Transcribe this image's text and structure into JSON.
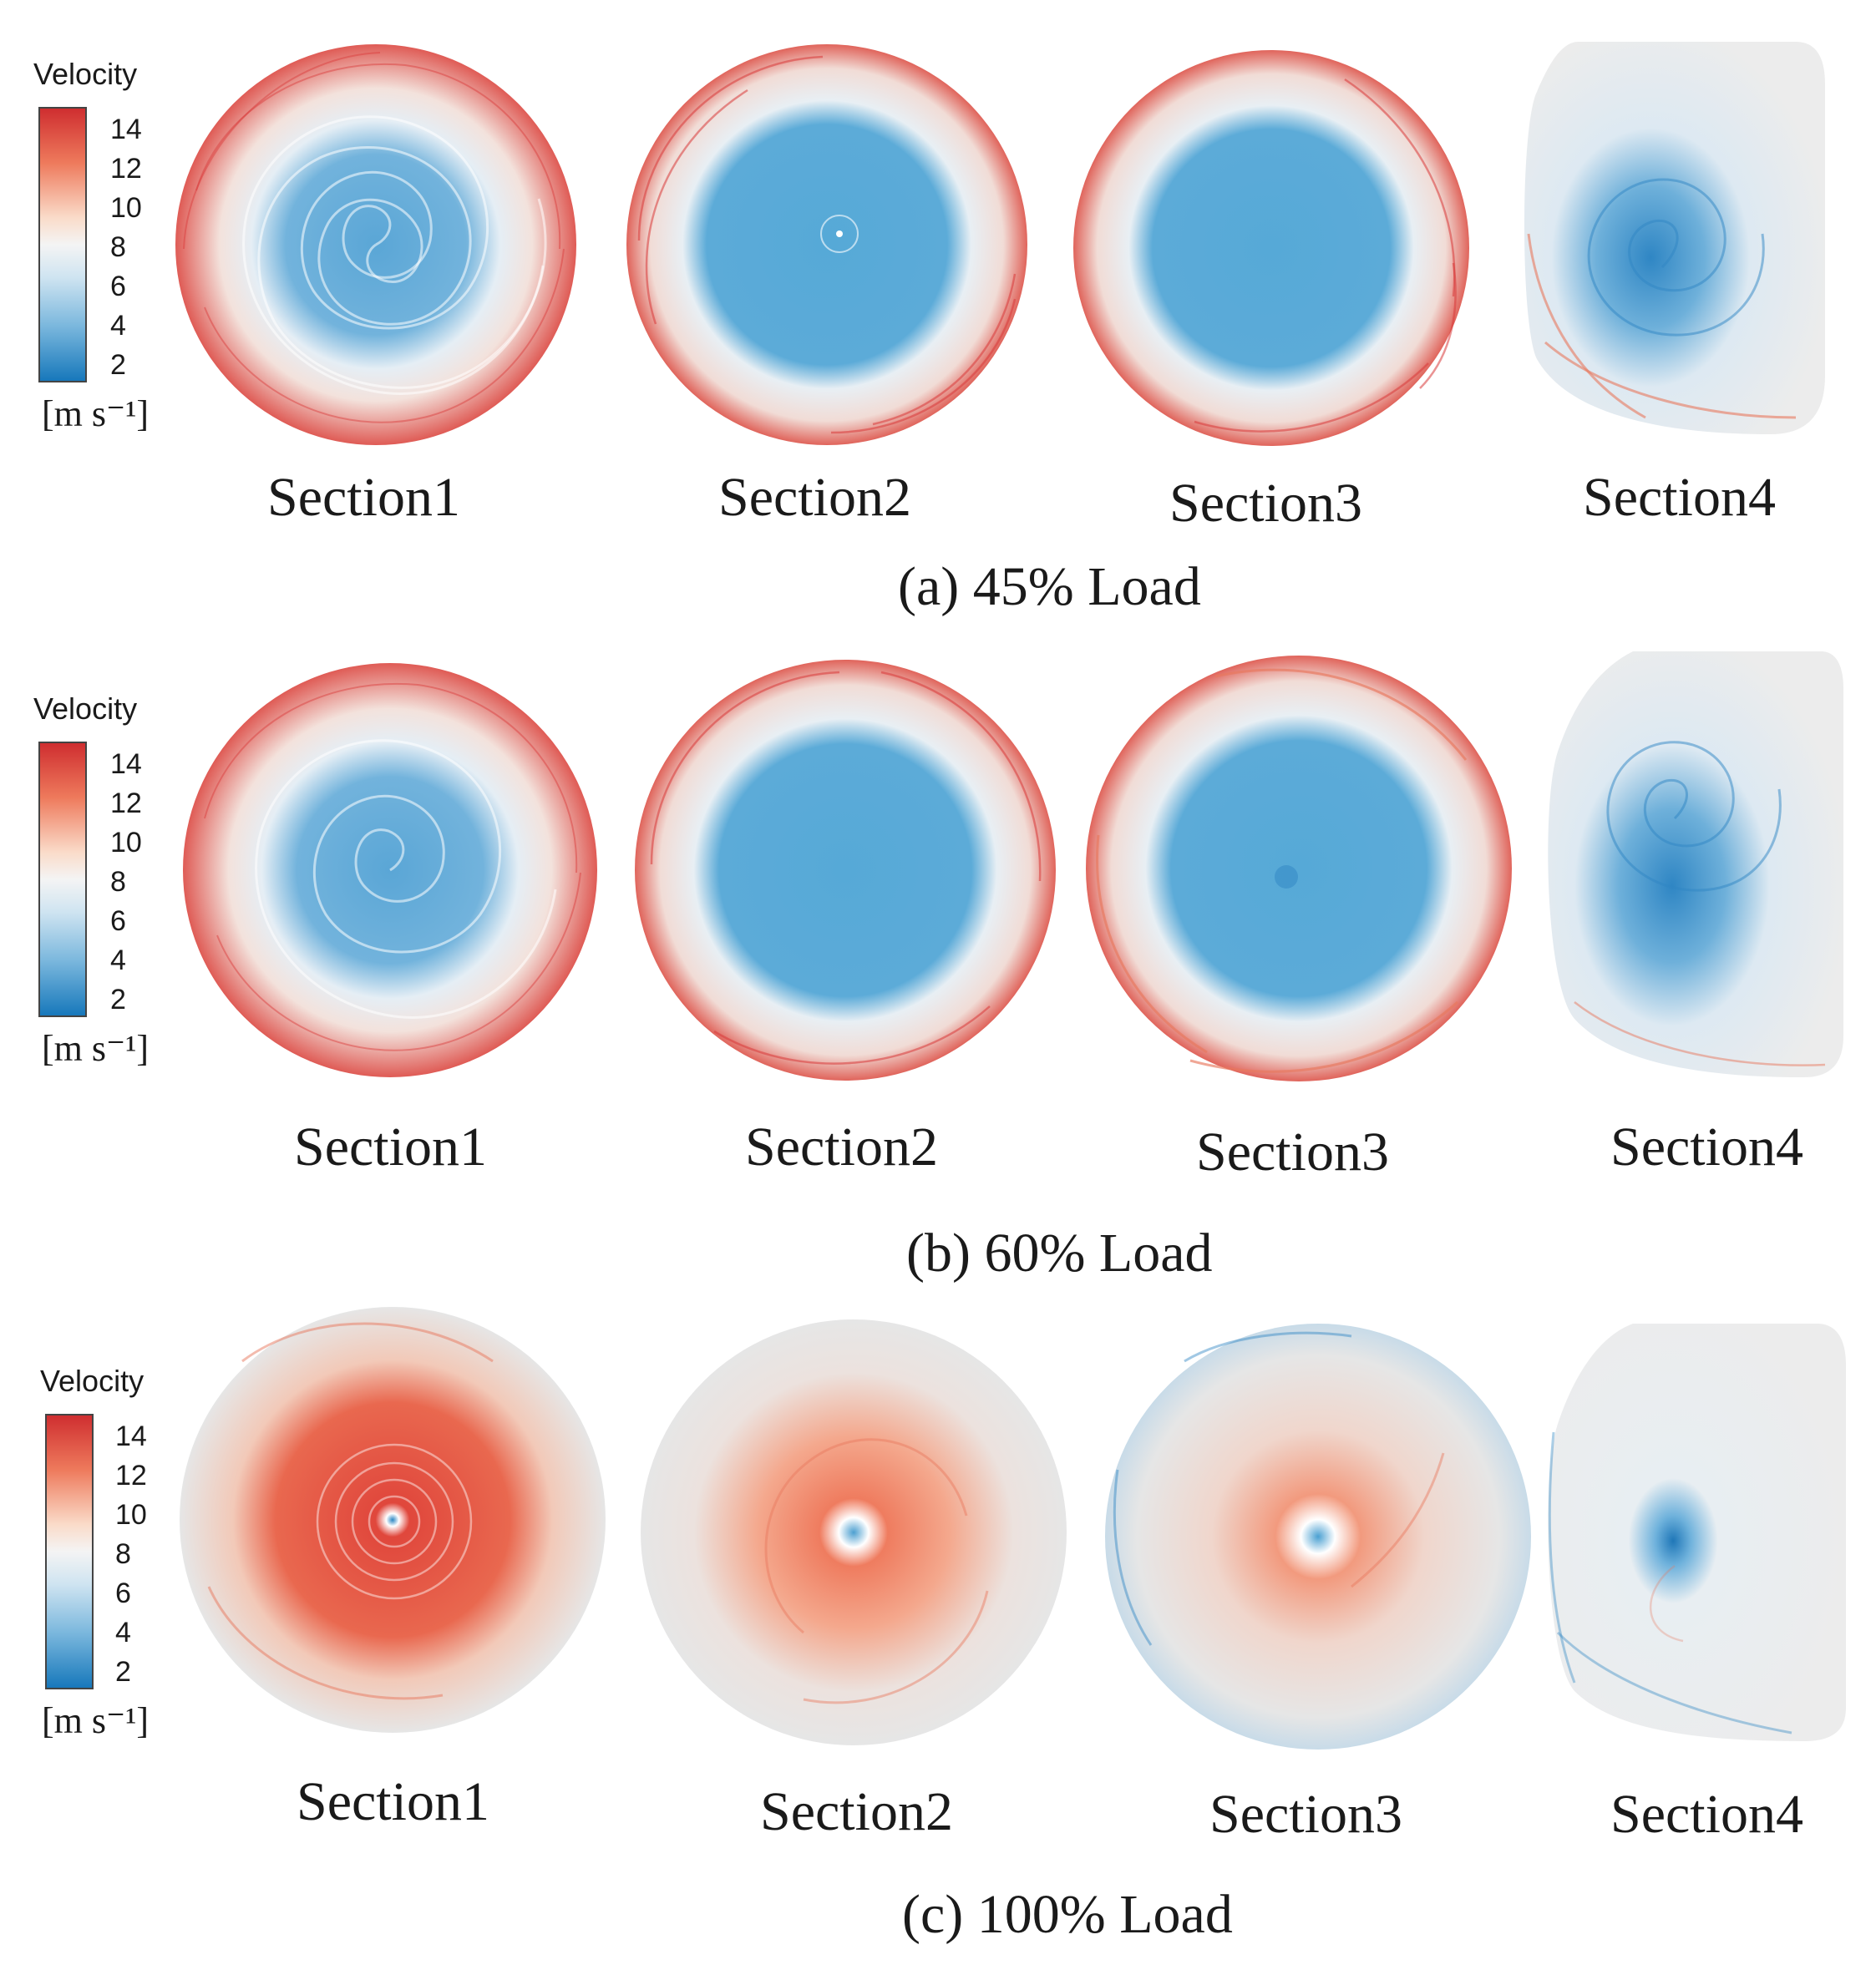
{
  "colorbar": {
    "title": "Velocity",
    "ticks": [
      "14",
      "12",
      "10",
      "8",
      "6",
      "4",
      "2"
    ],
    "unit": "[m s⁻¹]",
    "colors": {
      "high": "#d73a3a",
      "mid": "#f2f2f2",
      "low": "#1f86c3"
    }
  },
  "panels": [
    {
      "caption": "(a) 45% Load",
      "sections": [
        "Section1",
        "Section2",
        "Section3",
        "Section4"
      ]
    },
    {
      "caption": "(b) 60% Load",
      "sections": [
        "Section1",
        "Section2",
        "Section3",
        "Section4"
      ]
    },
    {
      "caption": "(c) 100% Load",
      "sections": [
        "Section1",
        "Section2",
        "Section3",
        "Section4"
      ]
    }
  ]
}
